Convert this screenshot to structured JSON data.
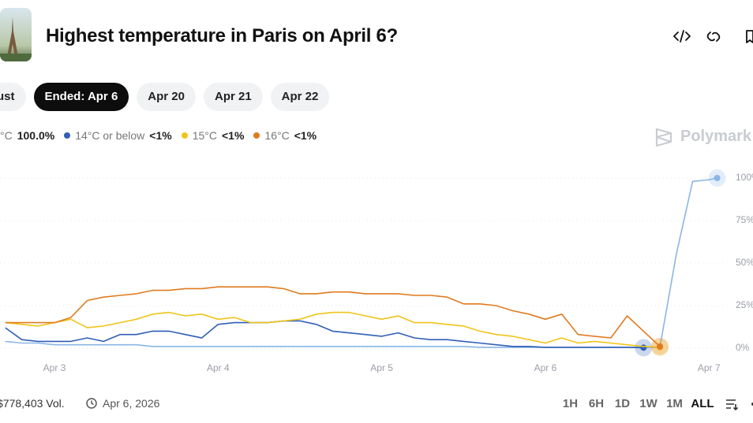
{
  "header": {
    "title": "Highest temperature in Paris on April 6?"
  },
  "tabs": [
    "ust",
    "Ended: Apr 6",
    "Apr 20",
    "Apr 21",
    "Apr 22"
  ],
  "watermark": "Polymark",
  "chart_data": {
    "type": "line",
    "x": [
      2.7,
      2.8,
      2.9,
      3.0,
      3.1,
      3.2,
      3.3,
      3.4,
      3.5,
      3.6,
      3.7,
      3.8,
      3.9,
      4.0,
      4.1,
      4.2,
      4.3,
      4.4,
      4.5,
      4.6,
      4.7,
      4.8,
      4.9,
      5.0,
      5.1,
      5.2,
      5.3,
      5.4,
      5.5,
      5.6,
      5.7,
      5.8,
      5.9,
      6.0,
      6.1,
      6.2,
      6.3,
      6.4,
      6.5,
      6.6,
      6.7,
      6.8,
      6.9,
      7.0,
      7.05
    ],
    "xlim": [
      2.667,
      7.105
    ],
    "xticks": [
      {
        "value": 3,
        "label": "Apr 3"
      },
      {
        "value": 4,
        "label": "Apr 4"
      },
      {
        "value": 5,
        "label": "Apr 5"
      },
      {
        "value": 6,
        "label": "Apr 6"
      },
      {
        "value": 7,
        "label": "Apr 7"
      }
    ],
    "ylim": [
      0,
      100
    ],
    "yticks": [
      {
        "value": 0,
        "label": "0%"
      },
      {
        "value": 25,
        "label": "25%"
      },
      {
        "value": 50,
        "label": "50%"
      },
      {
        "value": 75,
        "label": "75%"
      },
      {
        "value": 100,
        "label": "100%"
      }
    ],
    "grid": true,
    "series": [
      {
        "name": "°C",
        "odds": "100.0%",
        "color": "#8ab6e6",
        "values": [
          4,
          3,
          3,
          2,
          2,
          2,
          2,
          2,
          2,
          1,
          1,
          1,
          1,
          1,
          1,
          1,
          1,
          1,
          1,
          1,
          1,
          1,
          1,
          1,
          1,
          1,
          1,
          1,
          1,
          0.5,
          0.5,
          0.5,
          0.5,
          0.5,
          0.5,
          0.5,
          0.5,
          0.5,
          0.5,
          0.5,
          0.5,
          55,
          98,
          99,
          100
        ]
      },
      {
        "name": "14°C or below",
        "odds": "<1%",
        "color": "#2f5fb8",
        "values": [
          12,
          5,
          4,
          4,
          4,
          6,
          4,
          8,
          8,
          10,
          10,
          8,
          6,
          14,
          15,
          15,
          15,
          16,
          16,
          14,
          10,
          9,
          8,
          7,
          9,
          6,
          5,
          5,
          4,
          3,
          2,
          1,
          1,
          0.5,
          0.5,
          0.5,
          0.5,
          0.5,
          0.5,
          0.3,
          null,
          null,
          null,
          null,
          null
        ]
      },
      {
        "name": "15°C",
        "odds": "<1%",
        "color": "#f0c419",
        "values": [
          15,
          14,
          13,
          15,
          17,
          12,
          13,
          15,
          17,
          20,
          21,
          19,
          20,
          17,
          18,
          15,
          15,
          16,
          17,
          20,
          21,
          21,
          19,
          17,
          19,
          15,
          15,
          14,
          13,
          10,
          8,
          7,
          5,
          3,
          6,
          3,
          4,
          3,
          2,
          1,
          0.5,
          null,
          null,
          null,
          null
        ]
      },
      {
        "name": "16°C",
        "odds": "<1%",
        "color": "#e07b1f",
        "values": [
          15,
          15,
          15,
          15,
          18,
          28,
          30,
          31,
          32,
          34,
          34,
          35,
          35,
          36,
          36,
          36,
          36,
          35,
          32,
          32,
          33,
          33,
          32,
          32,
          32,
          31,
          31,
          30,
          26,
          26,
          25,
          22,
          20,
          17,
          20,
          8,
          7,
          6,
          19,
          10,
          1,
          null,
          null,
          null,
          null
        ]
      }
    ]
  },
  "footer": {
    "volume": "$778,403 Vol.",
    "date": "Apr 6, 2026",
    "ranges": [
      "1H",
      "6H",
      "1D",
      "1W",
      "1M",
      "ALL"
    ]
  }
}
